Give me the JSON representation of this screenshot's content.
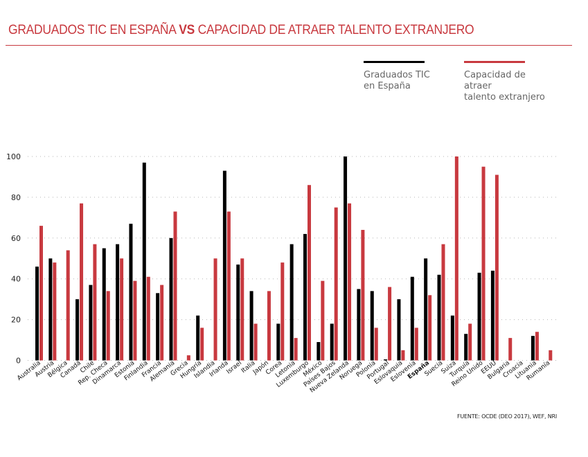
{
  "header": {
    "title_part1": "GRADUADOS TIC EN ESPAÑA ",
    "title_bold": "VS",
    "title_part2": " CAPACIDAD DE ATRAER TALENTO EXTRANJERO"
  },
  "legend": [
    {
      "line1": "Graduados TIC",
      "line2": "en España",
      "color": "#000000"
    },
    {
      "line1": "Capacidad de atraer",
      "line2": "talento extranjero",
      "color": "#c8393f"
    }
  ],
  "source": "FUENTE: OCDE (DEO 2017), WEF, NRI",
  "chart_data": {
    "type": "bar",
    "title": "GRADUADOS TIC EN ESPAÑA VS CAPACIDAD DE ATRAER TALENTO EXTRANJERO",
    "xlabel": "",
    "ylabel": "",
    "ylim": [
      0,
      100
    ],
    "yticks": [
      0,
      20,
      40,
      60,
      80,
      100
    ],
    "grid": true,
    "legend_position": "top-right",
    "highlight_category": "España",
    "categories": [
      "Australia",
      "Austria",
      "Bélgica",
      "Canadá",
      "Chile",
      "Rep. Checa",
      "Dinamarca",
      "Estonia",
      "Finlandia",
      "Francia",
      "Alemania",
      "Grecia",
      "Hungría",
      "Islandia",
      "Irlanda",
      "Israel",
      "Italia",
      "Japón",
      "Corea",
      "Letonia",
      "Luxemburgo",
      "México",
      "Países Bajos",
      "Nueva Zelanda",
      "Noruega",
      "Polonia",
      "Portugal",
      "Eslovaquia",
      "Eslovenia",
      "España",
      "Suecia",
      "Suiza",
      "Turquía",
      "Reino Unido",
      "EEUU",
      "Bulgaria",
      "Croacia",
      "Lituania",
      "Rumanía"
    ],
    "series": [
      {
        "name": "Graduados TIC en España",
        "color": "#000000",
        "values": [
          46,
          50,
          null,
          30,
          37,
          55,
          57,
          67,
          97,
          33,
          60,
          null,
          22,
          null,
          93,
          47,
          34,
          null,
          18,
          57,
          62,
          9,
          18,
          100,
          35,
          34,
          0.5,
          30,
          41,
          50,
          42,
          22,
          13,
          43,
          44,
          null,
          null,
          12,
          null
        ]
      },
      {
        "name": "Capacidad de atraer talento extranjero",
        "color": "#c8393f",
        "values": [
          66,
          48,
          54,
          77,
          57,
          34,
          50,
          39,
          41,
          37,
          73,
          2.5,
          16,
          50,
          73,
          50,
          18,
          34,
          48,
          11,
          86,
          39,
          75,
          77,
          64,
          16,
          36,
          5,
          16,
          32,
          57,
          100,
          18,
          95,
          91,
          11,
          null,
          14,
          5
        ]
      }
    ]
  }
}
